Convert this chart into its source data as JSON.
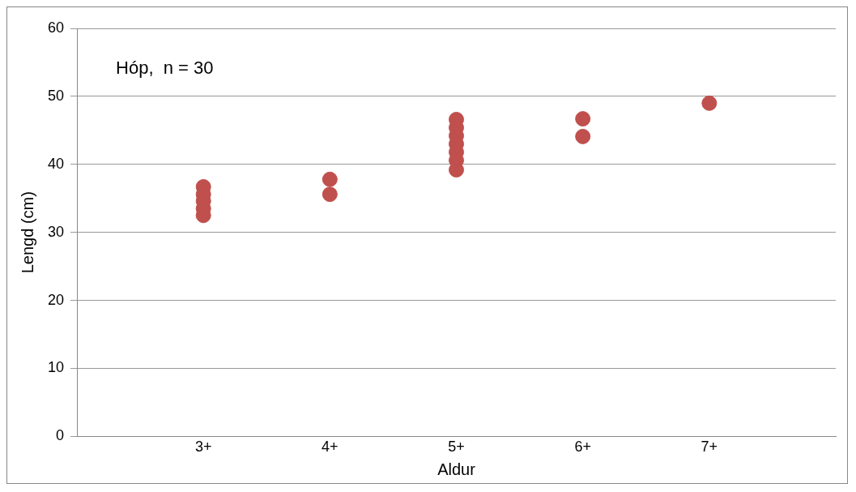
{
  "chart_data": {
    "type": "scatter",
    "xlabel": "Aldur",
    "ylabel": "Lengd (cm)",
    "annotations": [
      "Hóp,  n = 30"
    ],
    "categories": [
      null,
      "3+",
      "4+",
      "5+",
      "6+",
      "7+",
      null
    ],
    "ylim": [
      0,
      60
    ],
    "yticks": [
      0,
      10,
      20,
      30,
      40,
      50,
      60
    ],
    "grid": "y",
    "legend": false,
    "marker": "circle",
    "series": [
      {
        "color": "#c0504d",
        "x": [
          "3+",
          "3+",
          "3+",
          "3+",
          "3+",
          "4+",
          "4+",
          "5+",
          "5+",
          "5+",
          "5+",
          "5+",
          "5+",
          "5+",
          "6+",
          "6+",
          "7+"
        ],
        "values": [
          36.7,
          35.6,
          34.6,
          33.5,
          32.5,
          37.8,
          35.6,
          46.6,
          45.4,
          44.2,
          43.0,
          41.8,
          40.6,
          39.2,
          46.7,
          44.1,
          49.0
        ]
      }
    ]
  }
}
